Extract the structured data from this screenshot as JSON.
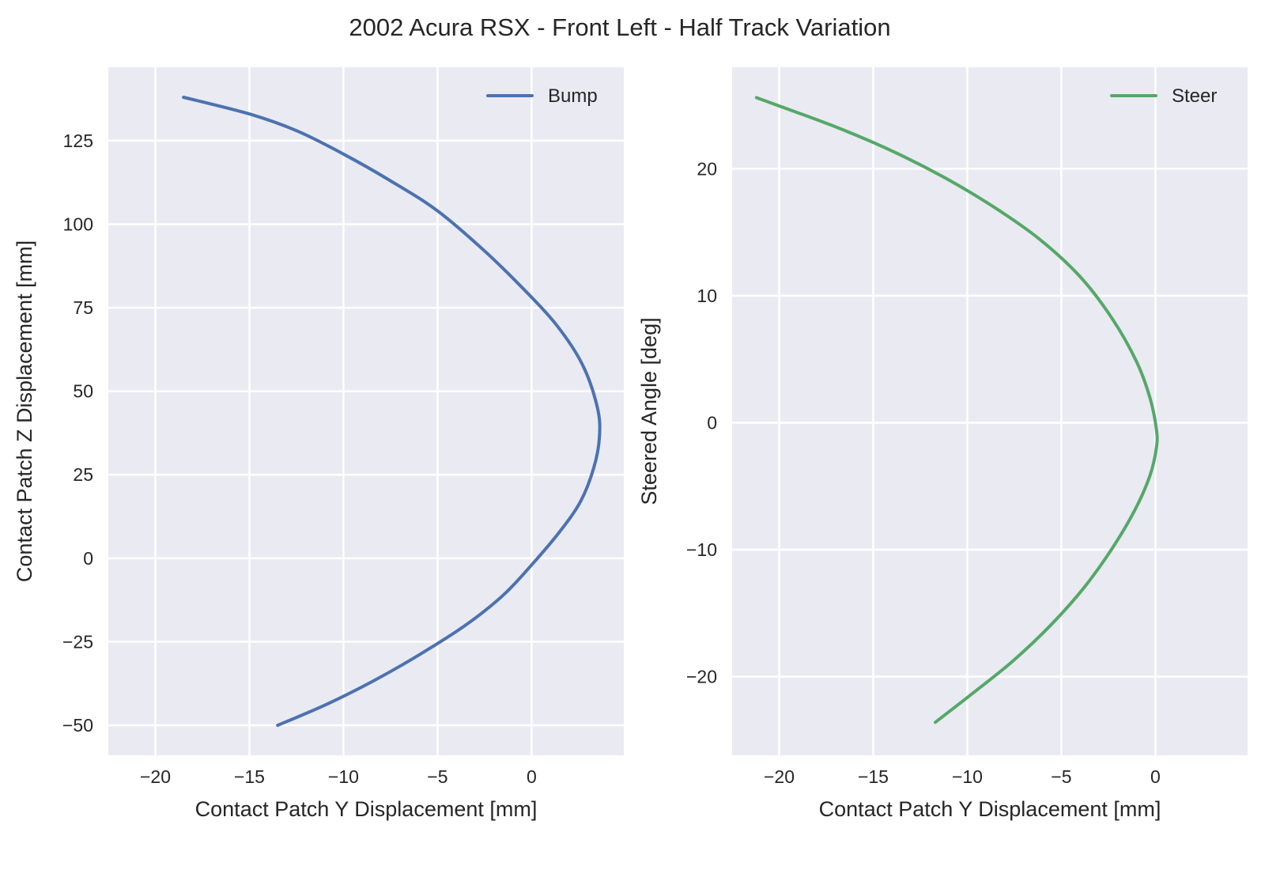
{
  "title": "2002 Acura RSX - Front Left - Half Track Variation",
  "chart_data": [
    {
      "type": "line",
      "xlabel": "Contact Patch Y Displacement [mm]",
      "ylabel": "Contact Patch Z Displacement [mm]",
      "xlim": [
        -22.5,
        4.9
      ],
      "ylim": [
        -59,
        147
      ],
      "xticks": [
        -20,
        -15,
        -10,
        -5,
        0
      ],
      "xtick_labels": [
        "−20",
        "−15",
        "−10",
        "−5",
        "0"
      ],
      "yticks": [
        -50,
        -25,
        0,
        25,
        50,
        75,
        100,
        125
      ],
      "ytick_labels": [
        "−50",
        "−25",
        "0",
        "25",
        "50",
        "75",
        "100",
        "125"
      ],
      "grid": true,
      "legend_position": "top-right",
      "series": [
        {
          "name": "Bump",
          "color": "#4c72b0",
          "x": [
            -13.5,
            -11.0,
            -8.5,
            -6.0,
            -3.5,
            -1.5,
            0.0,
            1.5,
            2.6,
            3.3,
            3.6,
            3.5,
            2.7,
            1.3,
            -0.5,
            -2.5,
            -5.0,
            -7.5,
            -10.0,
            -12.5,
            -15.0,
            -18.5
          ],
          "y": [
            -50,
            -44,
            -37,
            -29,
            -20,
            -11,
            -2,
            8,
            17,
            27,
            36,
            45,
            58,
            70,
            81,
            92,
            104,
            113,
            121,
            128,
            133,
            138
          ]
        }
      ]
    },
    {
      "type": "line",
      "xlabel": "Contact Patch Y Displacement [mm]",
      "ylabel": "Steered Angle [deg]",
      "xlim": [
        -22.5,
        4.9
      ],
      "ylim": [
        -26.2,
        28.0
      ],
      "xticks": [
        -20,
        -15,
        -10,
        -5,
        0
      ],
      "xtick_labels": [
        "−20",
        "−15",
        "−10",
        "−5",
        "0"
      ],
      "yticks": [
        -20,
        -10,
        0,
        10,
        20
      ],
      "ytick_labels": [
        "−20",
        "−10",
        "0",
        "10",
        "20"
      ],
      "grid": true,
      "legend_position": "top-right",
      "series": [
        {
          "name": "Steer",
          "color": "#55a868",
          "x": [
            -11.7,
            -9.7,
            -7.6,
            -5.6,
            -3.8,
            -2.3,
            -1.1,
            -0.3,
            0.05,
            0.05,
            -0.3,
            -1.0,
            -2.3,
            -4.0,
            -6.2,
            -8.6,
            -11.2,
            -14.0,
            -17.0,
            -21.2
          ],
          "y": [
            -23.6,
            -21.3,
            -18.8,
            -16.0,
            -13.0,
            -9.9,
            -6.9,
            -4.2,
            -2.0,
            -0.5,
            2.0,
            4.8,
            8.2,
            11.5,
            14.5,
            17.0,
            19.3,
            21.4,
            23.3,
            25.6
          ]
        }
      ]
    }
  ]
}
